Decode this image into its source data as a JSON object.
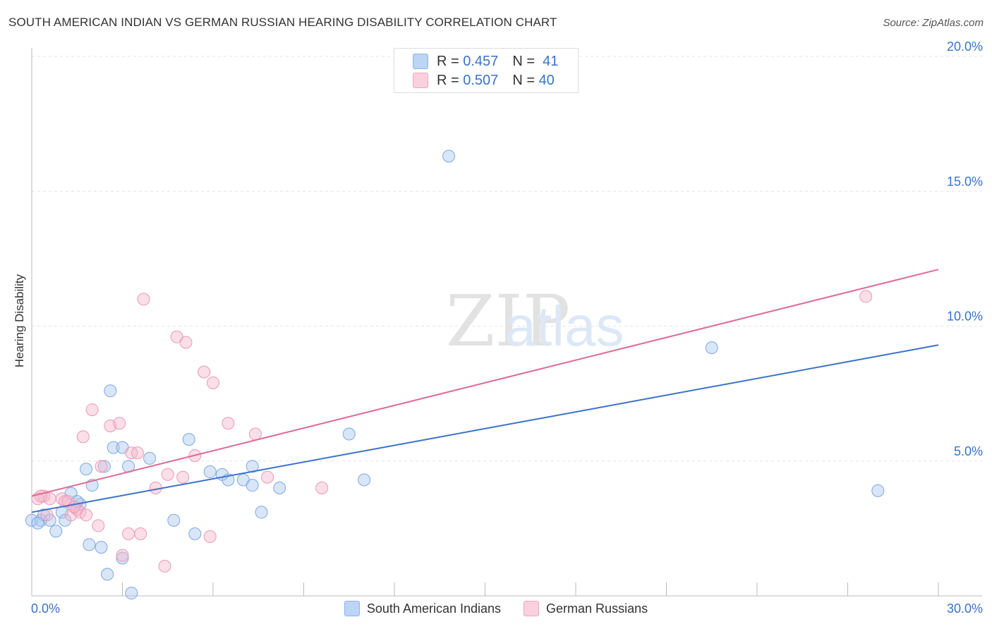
{
  "chart_data": {
    "type": "scatter",
    "title": "SOUTH AMERICAN INDIAN VS GERMAN RUSSIAN HEARING DISABILITY CORRELATION CHART",
    "source": "Source: ZipAtlas.com",
    "xlabel": "",
    "ylabel": "Hearing Disability",
    "xlim": [
      0,
      30
    ],
    "ylim": [
      0,
      20
    ],
    "y_ticks": [
      {
        "value": 5,
        "label": "5.0%"
      },
      {
        "value": 10,
        "label": "10.0%"
      },
      {
        "value": 15,
        "label": "15.0%"
      },
      {
        "value": 20,
        "label": "20.0%"
      }
    ],
    "x_ticks": [
      {
        "value": 0,
        "label": "0.0%"
      },
      {
        "value": 30,
        "label": "30.0%"
      }
    ],
    "grid": true,
    "watermark": "ZIPatlas",
    "legend_stats": [
      {
        "r_label": "R =",
        "r_value": "0.457",
        "n_label": "N =",
        "n_value": "41",
        "color": "#a9c8f0"
      },
      {
        "r_label": "R =",
        "r_value": "0.507",
        "n_label": "N =",
        "n_value": "40",
        "color": "#f5b8cc"
      }
    ],
    "series": [
      {
        "name": "South American Indians",
        "color": "#a9c8f0",
        "line_color": "#3a72c9",
        "trend": {
          "x0": 0,
          "y0": 3.1,
          "x1": 30,
          "y1": 9.3
        },
        "points": [
          [
            0.0,
            2.8
          ],
          [
            0.3,
            2.8
          ],
          [
            0.4,
            3.0
          ],
          [
            0.6,
            2.8
          ],
          [
            0.8,
            2.4
          ],
          [
            1.0,
            3.1
          ],
          [
            1.1,
            2.8
          ],
          [
            1.3,
            3.8
          ],
          [
            1.4,
            3.3
          ],
          [
            1.6,
            3.4
          ],
          [
            1.8,
            4.7
          ],
          [
            1.9,
            1.9
          ],
          [
            2.0,
            4.1
          ],
          [
            2.3,
            1.8
          ],
          [
            2.4,
            4.8
          ],
          [
            2.5,
            0.8
          ],
          [
            2.6,
            7.6
          ],
          [
            2.7,
            5.5
          ],
          [
            3.0,
            5.5
          ],
          [
            3.0,
            1.4
          ],
          [
            3.2,
            4.8
          ],
          [
            3.3,
            0.1
          ],
          [
            3.9,
            5.1
          ],
          [
            4.7,
            2.8
          ],
          [
            5.2,
            5.8
          ],
          [
            5.4,
            2.3
          ],
          [
            5.9,
            4.6
          ],
          [
            6.3,
            4.5
          ],
          [
            6.5,
            4.3
          ],
          [
            7.0,
            4.3
          ],
          [
            7.3,
            4.1
          ],
          [
            7.3,
            4.8
          ],
          [
            7.6,
            3.1
          ],
          [
            8.2,
            4.0
          ],
          [
            10.5,
            6.0
          ],
          [
            11.0,
            4.3
          ],
          [
            13.8,
            16.3
          ],
          [
            22.5,
            9.2
          ],
          [
            28.0,
            3.9
          ],
          [
            0.2,
            2.7
          ],
          [
            1.5,
            3.5
          ]
        ]
      },
      {
        "name": "German Russians",
        "color": "#f5b8cc",
        "line_color": "#e06b93",
        "trend": {
          "x0": 0,
          "y0": 3.7,
          "x1": 30,
          "y1": 12.1
        },
        "points": [
          [
            0.2,
            3.6
          ],
          [
            0.4,
            3.7
          ],
          [
            0.5,
            3.0
          ],
          [
            0.6,
            3.6
          ],
          [
            1.0,
            3.6
          ],
          [
            1.1,
            3.5
          ],
          [
            1.2,
            3.5
          ],
          [
            1.3,
            3.0
          ],
          [
            1.5,
            3.2
          ],
          [
            1.6,
            3.1
          ],
          [
            1.7,
            5.9
          ],
          [
            1.8,
            3.0
          ],
          [
            2.0,
            6.9
          ],
          [
            2.2,
            2.6
          ],
          [
            2.3,
            4.8
          ],
          [
            2.6,
            6.3
          ],
          [
            2.9,
            6.4
          ],
          [
            3.0,
            1.5
          ],
          [
            3.2,
            2.3
          ],
          [
            3.3,
            5.3
          ],
          [
            3.5,
            5.3
          ],
          [
            3.6,
            2.3
          ],
          [
            3.7,
            11.0
          ],
          [
            4.1,
            4.0
          ],
          [
            4.4,
            1.1
          ],
          [
            4.5,
            4.5
          ],
          [
            4.8,
            9.6
          ],
          [
            5.0,
            4.4
          ],
          [
            5.1,
            9.4
          ],
          [
            5.4,
            5.2
          ],
          [
            5.7,
            8.3
          ],
          [
            5.9,
            2.2
          ],
          [
            6.0,
            7.9
          ],
          [
            6.5,
            6.4
          ],
          [
            7.4,
            6.0
          ],
          [
            7.8,
            4.4
          ],
          [
            9.6,
            4.0
          ],
          [
            27.6,
            11.1
          ],
          [
            0.3,
            3.7
          ],
          [
            1.4,
            3.3
          ]
        ]
      }
    ]
  }
}
